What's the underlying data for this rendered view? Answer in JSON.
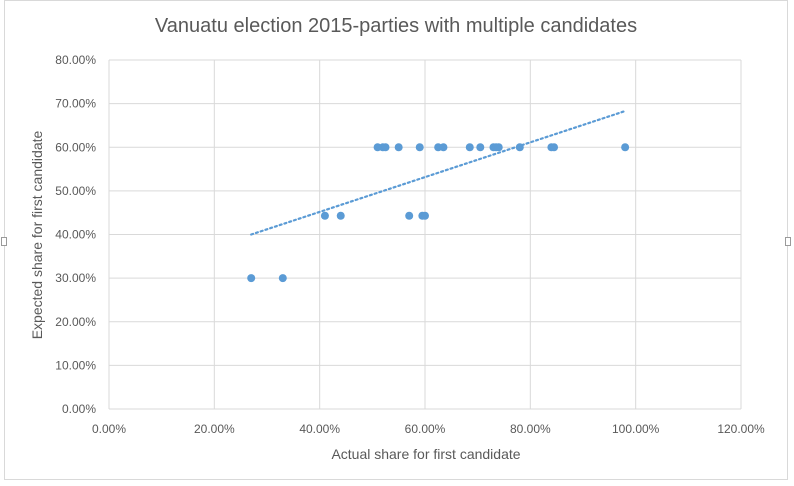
{
  "chart_data": {
    "type": "scatter",
    "title": "Vanuatu election 2015-parties with multiple candidates",
    "xlabel": "Actual share for first candidate",
    "ylabel": "Expected share for first candidate",
    "xlim": [
      0,
      1.2
    ],
    "ylim": [
      0,
      0.8
    ],
    "x_ticks": [
      "0.00%",
      "20.00%",
      "40.00%",
      "60.00%",
      "80.00%",
      "100.00%",
      "120.00%"
    ],
    "y_ticks": [
      "0.00%",
      "10.00%",
      "20.00%",
      "30.00%",
      "40.00%",
      "50.00%",
      "60.00%",
      "70.00%",
      "80.00%"
    ],
    "grid": true,
    "legend": "none",
    "marker_color": "#5b9bd5",
    "trendline": {
      "type": "linear",
      "style": "dotted",
      "color": "#5b9bd5",
      "x": [
        0.27,
        0.98
      ],
      "y": [
        0.4,
        0.683
      ]
    },
    "points": [
      {
        "x": 0.27,
        "y": 0.3
      },
      {
        "x": 0.33,
        "y": 0.3
      },
      {
        "x": 0.41,
        "y": 0.443
      },
      {
        "x": 0.44,
        "y": 0.443
      },
      {
        "x": 0.51,
        "y": 0.6
      },
      {
        "x": 0.52,
        "y": 0.6
      },
      {
        "x": 0.525,
        "y": 0.6
      },
      {
        "x": 0.55,
        "y": 0.6
      },
      {
        "x": 0.57,
        "y": 0.443
      },
      {
        "x": 0.59,
        "y": 0.6
      },
      {
        "x": 0.595,
        "y": 0.443
      },
      {
        "x": 0.6,
        "y": 0.443
      },
      {
        "x": 0.625,
        "y": 0.6
      },
      {
        "x": 0.635,
        "y": 0.6
      },
      {
        "x": 0.685,
        "y": 0.6
      },
      {
        "x": 0.705,
        "y": 0.6
      },
      {
        "x": 0.73,
        "y": 0.6
      },
      {
        "x": 0.735,
        "y": 0.6
      },
      {
        "x": 0.74,
        "y": 0.6
      },
      {
        "x": 0.78,
        "y": 0.6
      },
      {
        "x": 0.84,
        "y": 0.6
      },
      {
        "x": 0.845,
        "y": 0.6
      },
      {
        "x": 0.98,
        "y": 0.6
      }
    ]
  }
}
